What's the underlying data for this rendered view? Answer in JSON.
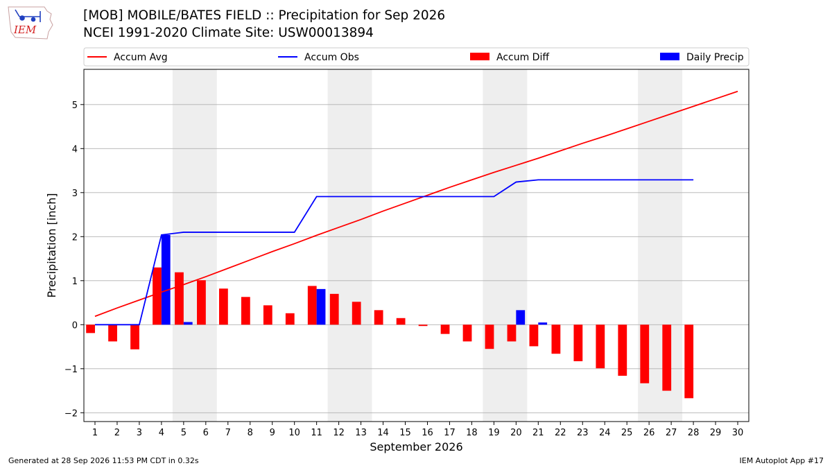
{
  "header": {
    "title_line1": "[MOB] MOBILE/BATES FIELD :: Precipitation for Sep 2026",
    "title_line2": "NCEI 1991-2020 Climate Site: USW00013894"
  },
  "logo": {
    "text": "IEM",
    "color": "#d42020"
  },
  "footer": {
    "left": "Generated at 28 Sep 2026 11:53 PM CDT in 0.32s",
    "right": "IEM Autoplot App #17"
  },
  "chart_data": {
    "type": "bar",
    "xlabel": "September 2026",
    "ylabel": "Precipitation [inch]",
    "x": [
      1,
      2,
      3,
      4,
      5,
      6,
      7,
      8,
      9,
      10,
      11,
      12,
      13,
      14,
      15,
      16,
      17,
      18,
      19,
      20,
      21,
      22,
      23,
      24,
      25,
      26,
      27,
      28,
      29,
      30
    ],
    "xlim": [
      0.5,
      30.5
    ],
    "ylim": [
      -2.2,
      5.8
    ],
    "yticks": [
      -2,
      -1,
      0,
      1,
      2,
      3,
      4,
      5
    ],
    "ytick_labels": [
      "−2",
      "−1",
      "0",
      "1",
      "2",
      "3",
      "4",
      "5"
    ],
    "grid": "horizontal",
    "weekend_shading": [
      [
        4.5,
        6.5
      ],
      [
        11.5,
        13.5
      ],
      [
        18.5,
        20.5
      ],
      [
        25.5,
        27.5
      ]
    ],
    "legend_placement": "top",
    "series": [
      {
        "name": "Accum Avg",
        "kind": "line",
        "color": "#ff0000",
        "x": [
          1,
          2,
          3,
          4,
          5,
          6,
          7,
          8,
          9,
          10,
          11,
          12,
          13,
          14,
          15,
          16,
          17,
          18,
          19,
          20,
          21,
          22,
          23,
          24,
          25,
          26,
          27,
          28,
          29,
          30
        ],
        "values": [
          0.19,
          0.38,
          0.56,
          0.74,
          0.91,
          1.09,
          1.28,
          1.47,
          1.66,
          1.84,
          2.03,
          2.21,
          2.39,
          2.58,
          2.76,
          2.94,
          3.12,
          3.29,
          3.46,
          3.62,
          3.78,
          3.95,
          4.12,
          4.28,
          4.45,
          4.62,
          4.79,
          4.96,
          5.13,
          5.3
        ]
      },
      {
        "name": "Accum Obs",
        "kind": "line",
        "color": "#0000ff",
        "x": [
          1,
          2,
          3,
          4,
          5,
          6,
          7,
          8,
          9,
          10,
          11,
          12,
          13,
          14,
          15,
          16,
          17,
          18,
          19,
          20,
          21,
          22,
          23,
          24,
          25,
          26,
          27,
          28
        ],
        "values": [
          0.0,
          0.0,
          0.0,
          2.04,
          2.1,
          2.1,
          2.1,
          2.1,
          2.1,
          2.1,
          2.91,
          2.91,
          2.91,
          2.91,
          2.91,
          2.91,
          2.91,
          2.91,
          2.91,
          3.24,
          3.29,
          3.29,
          3.29,
          3.29,
          3.29,
          3.29,
          3.29,
          3.29
        ]
      },
      {
        "name": "Accum Diff",
        "kind": "bar",
        "color": "#ff0000",
        "x": [
          1,
          2,
          3,
          4,
          5,
          6,
          7,
          8,
          9,
          10,
          11,
          12,
          13,
          14,
          15,
          16,
          17,
          18,
          19,
          20,
          21,
          22,
          23,
          24,
          25,
          26,
          27,
          28
        ],
        "values": [
          -0.19,
          -0.38,
          -0.56,
          1.3,
          1.19,
          1.01,
          0.82,
          0.63,
          0.44,
          0.26,
          0.88,
          0.7,
          0.52,
          0.33,
          0.15,
          -0.03,
          -0.21,
          -0.38,
          -0.55,
          -0.38,
          -0.49,
          -0.66,
          -0.83,
          -0.99,
          -1.16,
          -1.33,
          -1.5,
          -1.67
        ]
      },
      {
        "name": "Daily Precip",
        "kind": "bar",
        "color": "#0000ff",
        "x": [
          4,
          5,
          11,
          20,
          21
        ],
        "values": [
          2.04,
          0.06,
          0.81,
          0.33,
          0.05
        ]
      }
    ]
  }
}
